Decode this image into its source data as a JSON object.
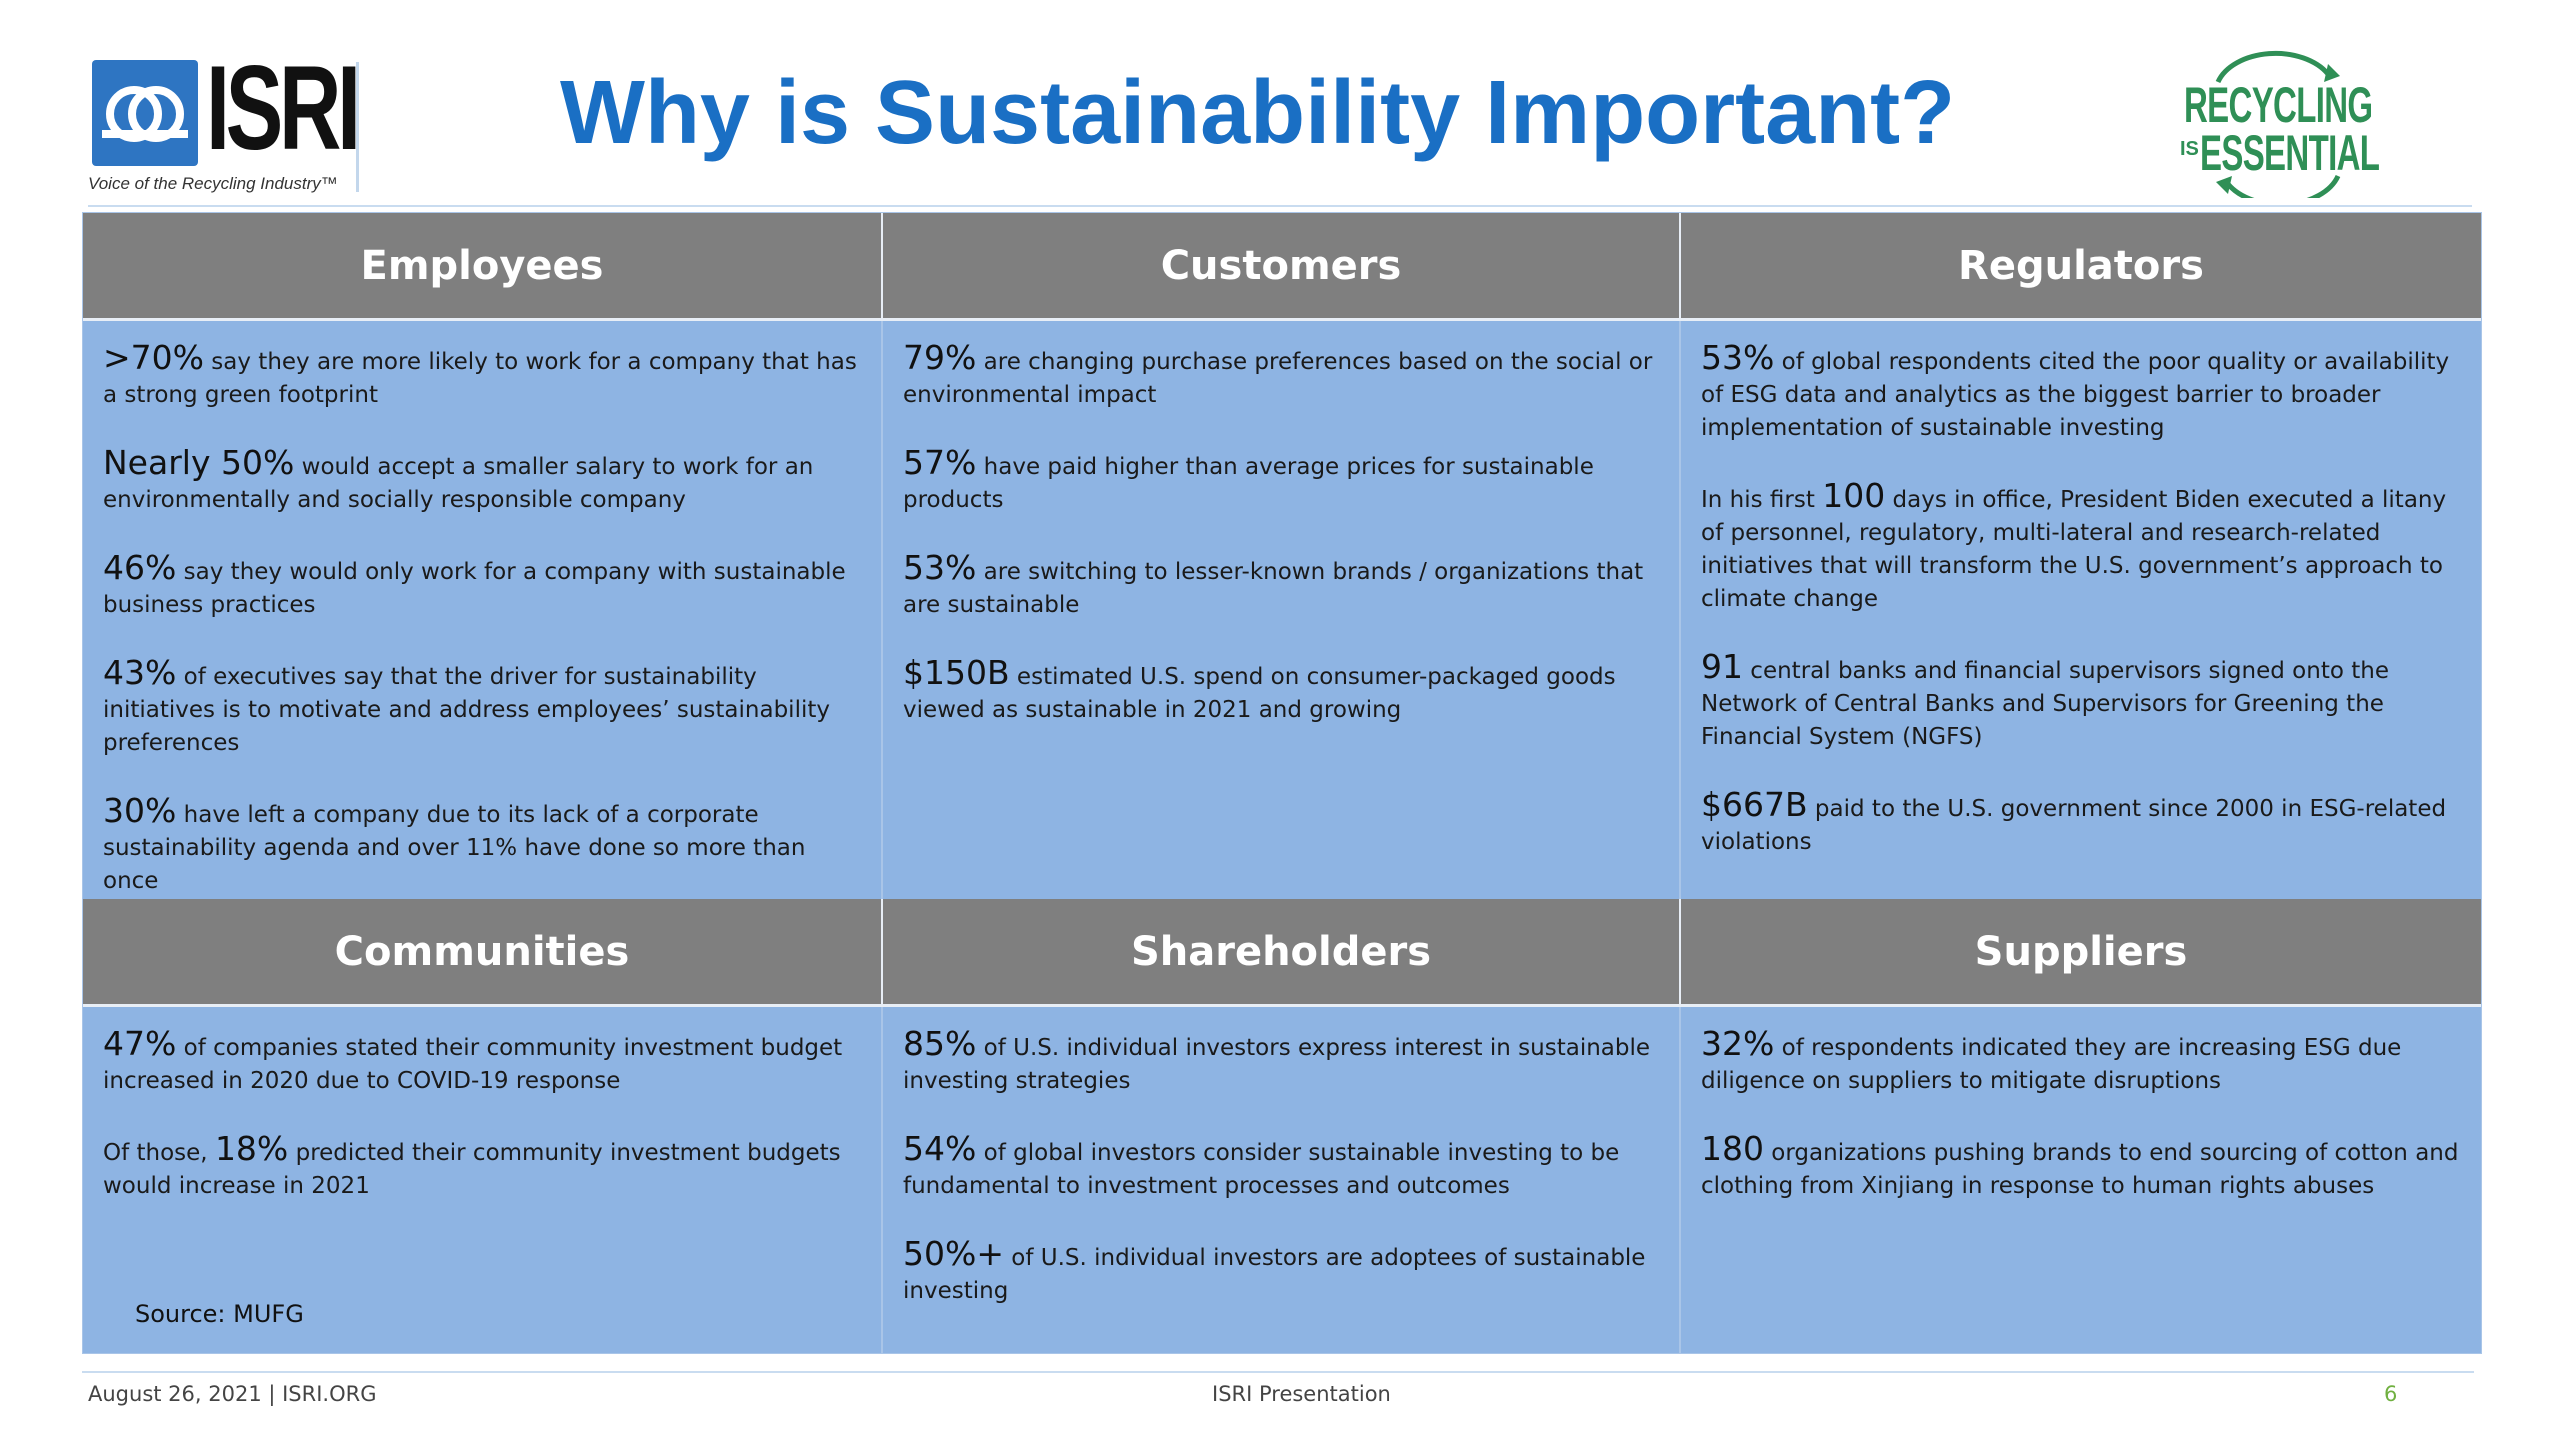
{
  "logo": {
    "word": "ISRI",
    "tagline": "Voice of the Recycling Industry™"
  },
  "title": "Why is Sustainability Important?",
  "badge": {
    "line1": "RECYCLING",
    "is": "IS",
    "line2": "ESSENTIAL"
  },
  "sections": [
    {
      "heading": "Employees",
      "stats": [
        {
          "num": ">70%",
          "text": " say they are more likely to work for a company that has a strong green footprint"
        },
        {
          "num": "Nearly 50%",
          "text": " would accept a smaller salary to work for an environmentally and socially responsible company"
        },
        {
          "num": "46%",
          "text": " say they would only work for a company with sustainable business practices"
        },
        {
          "num": "43%",
          "text": " of executives say that the driver for sustainability initiatives is to motivate and address employees’ sustainability preferences"
        },
        {
          "num": "30%",
          "text": " have left a company due to its lack of a corporate sustainability agenda and over 11% have done so more than once"
        }
      ]
    },
    {
      "heading": "Customers",
      "stats": [
        {
          "num": "79%",
          "text": " are changing purchase preferences based on the social or environmental impact"
        },
        {
          "num": "57%",
          "text": " have paid higher than average prices for sustainable products"
        },
        {
          "num": "53%",
          "text": " are switching to lesser-known brands / organizations that are sustainable"
        },
        {
          "num": "$150B",
          "text": " estimated U.S. spend on consumer-packaged goods viewed as sustainable in 2021 and growing"
        }
      ]
    },
    {
      "heading": "Regulators",
      "stats": [
        {
          "num": "53%",
          "text": " of global respondents cited the poor quality or availability of ESG data and analytics as the biggest barrier to broader implementation of sustainable investing"
        },
        {
          "pre": "In his first ",
          "num": "100",
          "text": " days in office, President Biden executed a litany of personnel, regulatory, multi-lateral and research-related initiatives that will transform the U.S. government’s approach to climate change"
        },
        {
          "num": "91",
          "text": " central banks and financial supervisors signed onto the Network of Central Banks and Supervisors for Greening the Financial System (NGFS)"
        },
        {
          "num": "$667B",
          "text": " paid to the U.S. government since 2000 in ESG-related violations"
        }
      ]
    },
    {
      "heading": "Communities",
      "stats": [
        {
          "num": "47%",
          "text": " of companies stated their community investment budget increased in 2020 due to COVID-19 response"
        },
        {
          "pre": "Of those, ",
          "num": "18%",
          "text": " predicted their community investment budgets would increase in 2021"
        }
      ],
      "source": "Source: MUFG"
    },
    {
      "heading": "Shareholders",
      "stats": [
        {
          "num": "85%",
          "text": " of U.S. individual investors express interest in sustainable investing strategies"
        },
        {
          "num": "54%",
          "text": " of global investors consider sustainable investing to be fundamental to investment processes and outcomes"
        },
        {
          "num": "50%+",
          "text": " of U.S. individual investors are adoptees of sustainable investing"
        }
      ]
    },
    {
      "heading": "Suppliers",
      "stats": [
        {
          "num": "32%",
          "text": " of respondents indicated they are increasing ESG due diligence on suppliers to mitigate disruptions"
        },
        {
          "num": "180",
          "text": " organizations pushing brands to end sourcing of cotton and clothing from Xinjiang in response to human rights abuses"
        }
      ]
    }
  ],
  "footer": {
    "left": "August 26, 2021 | ISRI.ORG",
    "center": "ISRI Presentation",
    "page": "6"
  },
  "colors": {
    "title": "#1a6fc4",
    "header_bg": "#7f7f7f",
    "cell_bg": "#8eb4e3",
    "badge_green": "#2f8f56",
    "page_number": "#70b040"
  }
}
